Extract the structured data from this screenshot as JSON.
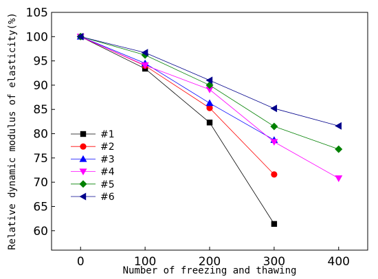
{
  "chart_data": {
    "type": "line",
    "xlabel": "Number of freezing and thawing",
    "ylabel": "Relative dynamic modulus of elasticity(%)",
    "xlim": [
      -45,
      445
    ],
    "ylim": [
      56,
      105
    ],
    "xticks": [
      0,
      100,
      200,
      300,
      400
    ],
    "yticks": [
      60,
      65,
      70,
      75,
      80,
      85,
      90,
      95,
      100,
      105
    ],
    "grid": false,
    "legend_position": "left-middle",
    "series": [
      {
        "name": "#1",
        "color": "#000000",
        "marker": "square",
        "x": [
          0,
          100,
          200,
          300
        ],
        "values": [
          100,
          93.4,
          82.3,
          61.4
        ]
      },
      {
        "name": "#2",
        "color": "#ff0000",
        "marker": "circle",
        "x": [
          0,
          100,
          200,
          300
        ],
        "values": [
          100,
          94.0,
          85.3,
          71.6
        ]
      },
      {
        "name": "#3",
        "color": "#0000ff",
        "marker": "triangle-up",
        "x": [
          0,
          100,
          200,
          300
        ],
        "values": [
          100,
          94.5,
          86.3,
          78.7
        ]
      },
      {
        "name": "#4",
        "color": "#ff00ff",
        "marker": "triangle-down",
        "x": [
          0,
          100,
          200,
          300,
          400
        ],
        "values": [
          100,
          94.1,
          89.1,
          78.3,
          70.8
        ]
      },
      {
        "name": "#5",
        "color": "#008000",
        "marker": "diamond",
        "x": [
          0,
          100,
          200,
          300,
          400
        ],
        "values": [
          100,
          96.2,
          90.0,
          81.5,
          76.8
        ]
      },
      {
        "name": "#6",
        "color": "#00008b",
        "marker": "triangle-left",
        "x": [
          0,
          100,
          200,
          300,
          400
        ],
        "values": [
          100,
          96.7,
          91.0,
          85.2,
          81.6
        ]
      }
    ]
  }
}
